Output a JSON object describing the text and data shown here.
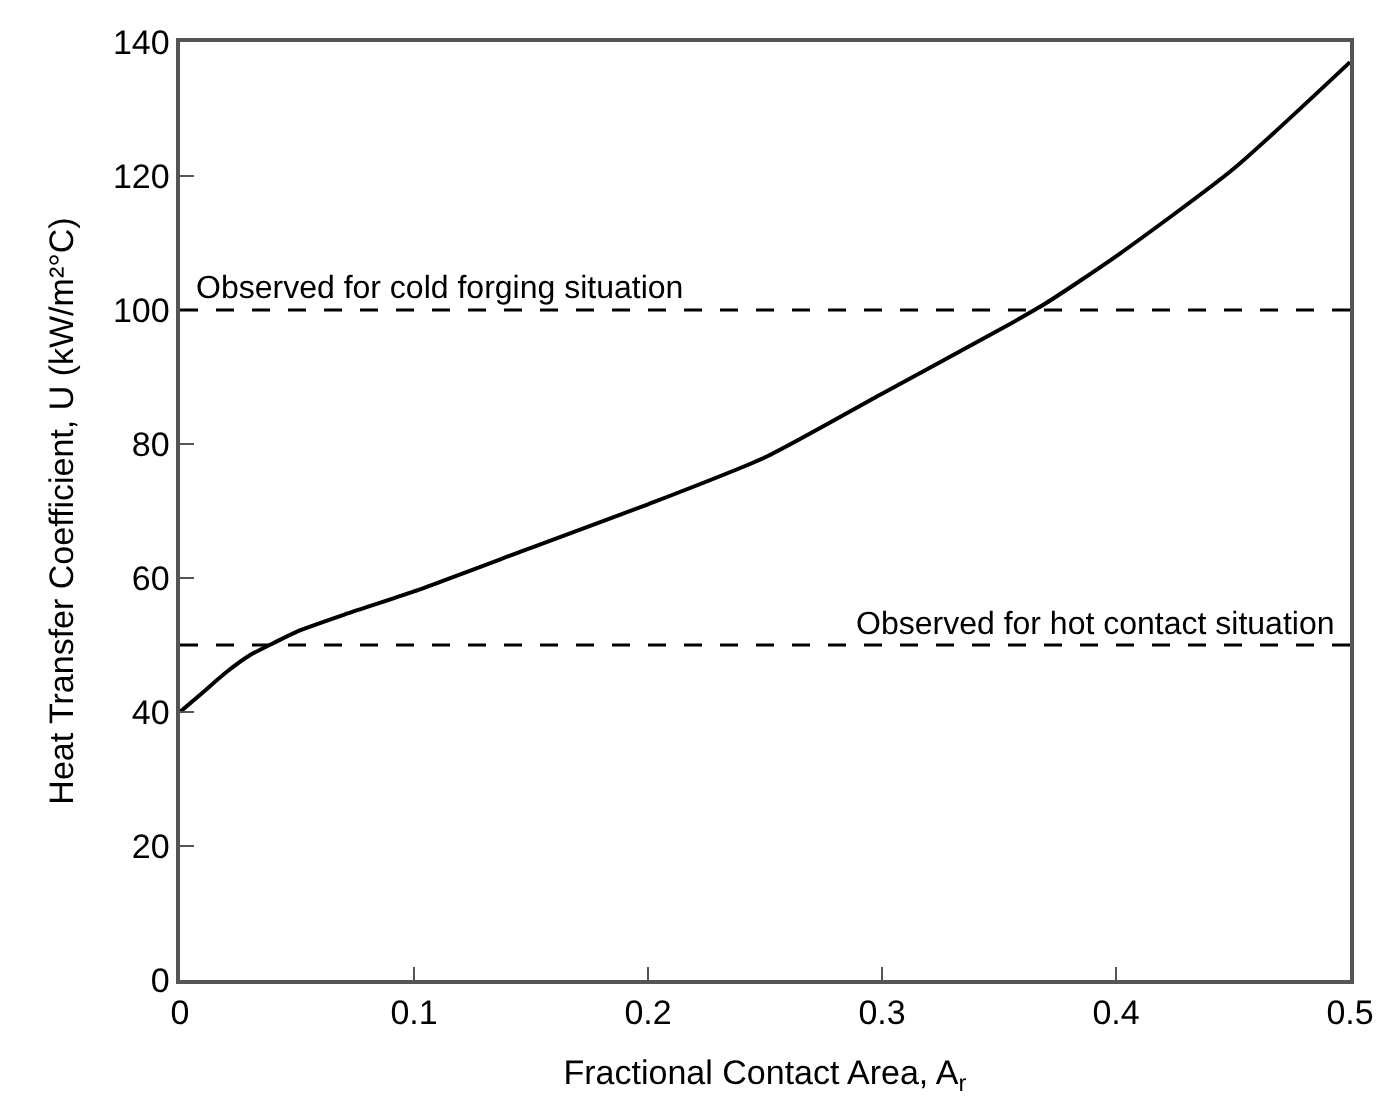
{
  "chart_data": {
    "type": "line",
    "xlabel": "Fractional Contact Area, A$_{r}$",
    "ylabel": "Heat Transfer Coefficient, U (kW/m²°C)",
    "x": [
      0,
      0.01,
      0.02,
      0.03,
      0.04,
      0.05,
      0.07,
      0.1,
      0.15,
      0.2,
      0.25,
      0.3,
      0.35,
      0.37,
      0.4,
      0.45,
      0.5
    ],
    "series": [
      {
        "color": "#000000",
        "values": [
          40,
          43,
          46,
          48.5,
          50.3,
          52,
          54.5,
          58,
          64.5,
          71,
          78,
          87.5,
          97,
          101,
          108,
          121,
          137
        ]
      }
    ],
    "xlim": [
      0,
      0.5
    ],
    "xticks": [
      0,
      0.1,
      0.2,
      0.3,
      0.4,
      0.5
    ],
    "ylim": [
      0,
      140
    ],
    "yticks": [
      0,
      20,
      40,
      60,
      80,
      100,
      120,
      140
    ],
    "ref_lines": [
      {
        "axis": "y",
        "value": 100,
        "label": "Observed for cold forging situation",
        "color": "#000000",
        "line_style": "dashed"
      },
      {
        "axis": "y",
        "value": 50,
        "label": "Observed for hot contact situation",
        "color": "#000000",
        "line_style": "dashed"
      }
    ],
    "marker": "none",
    "line_style": "solid"
  }
}
